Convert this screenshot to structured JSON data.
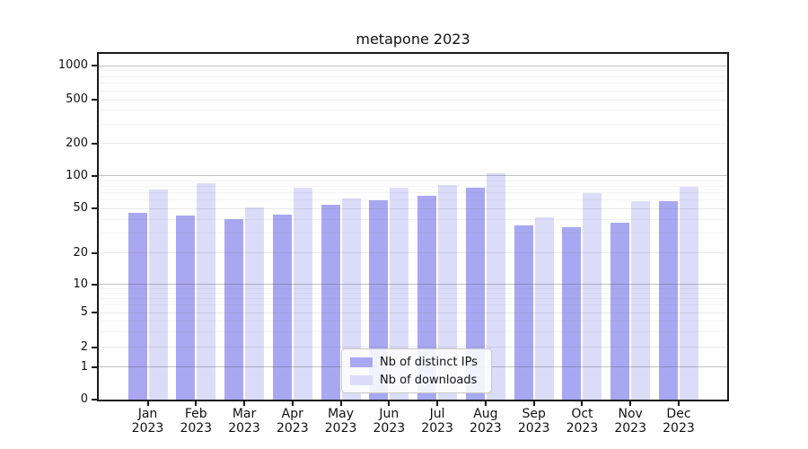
{
  "title": "metapone 2023",
  "chart_data": {
    "type": "bar",
    "title": "metapone 2023",
    "categories": [
      "Jan 2023",
      "Feb 2023",
      "Mar 2023",
      "Apr 2023",
      "May 2023",
      "Jun 2023",
      "Jul 2023",
      "Aug 2023",
      "Sep 2023",
      "Oct 2023",
      "Nov 2023",
      "Dec 2023"
    ],
    "x_tick_labels": [
      {
        "month": "Jan",
        "year": "2023"
      },
      {
        "month": "Feb",
        "year": "2023"
      },
      {
        "month": "Mar",
        "year": "2023"
      },
      {
        "month": "Apr",
        "year": "2023"
      },
      {
        "month": "May",
        "year": "2023"
      },
      {
        "month": "Jun",
        "year": "2023"
      },
      {
        "month": "Jul",
        "year": "2023"
      },
      {
        "month": "Aug",
        "year": "2023"
      },
      {
        "month": "Sep",
        "year": "2023"
      },
      {
        "month": "Oct",
        "year": "2023"
      },
      {
        "month": "Nov",
        "year": "2023"
      },
      {
        "month": "Dec",
        "year": "2023"
      }
    ],
    "series": [
      {
        "name": "Nb of distinct IPs",
        "color": "#a8a8f2",
        "values": [
          46,
          43,
          40,
          44,
          54,
          60,
          65,
          78,
          35,
          34,
          37,
          58
        ]
      },
      {
        "name": "Nb of downloads",
        "color": "#dcdcf9",
        "values": [
          75,
          86,
          51,
          78,
          62,
          78,
          83,
          105,
          42,
          70,
          58,
          79
        ]
      }
    ],
    "yscale": "symlog",
    "ylim": [
      0,
      1000
    ],
    "yticks": [
      0,
      1,
      2,
      5,
      10,
      20,
      50,
      100,
      200,
      500,
      1000
    ],
    "ytick_fractions": {
      "0": 0,
      "1": 0.0948,
      "2": 0.1519,
      "5": 0.2519,
      "10": 0.3325,
      "20": 0.4234,
      "50": 0.5532,
      "100": 0.6468,
      "200": 0.7403,
      "500": 0.8675,
      "1000": 0.9662
    },
    "major_gridlines": [
      1,
      10,
      100,
      1000
    ],
    "minor_gridlines": [
      2,
      5,
      20,
      50,
      200,
      500
    ],
    "subminor_gridlines": [
      3,
      4,
      6,
      7,
      8,
      9,
      30,
      40,
      60,
      70,
      80,
      90,
      300,
      400,
      600,
      700,
      800,
      900
    ],
    "grid": true,
    "legend_position": "lower center"
  },
  "legend": {
    "items": [
      {
        "label": "Nb of distinct IPs",
        "color": "#a8a8f2"
      },
      {
        "label": "Nb of downloads",
        "color": "#dcdcf9"
      }
    ]
  },
  "colors": {
    "spine": "#1a1a1a",
    "grid_major": "rgba(80,80,80,0.35)",
    "grid_minor": "rgba(80,80,80,0.13)",
    "grid_subminor": "rgba(80,80,80,0.07)",
    "legend_border": "#c7c7c7"
  }
}
